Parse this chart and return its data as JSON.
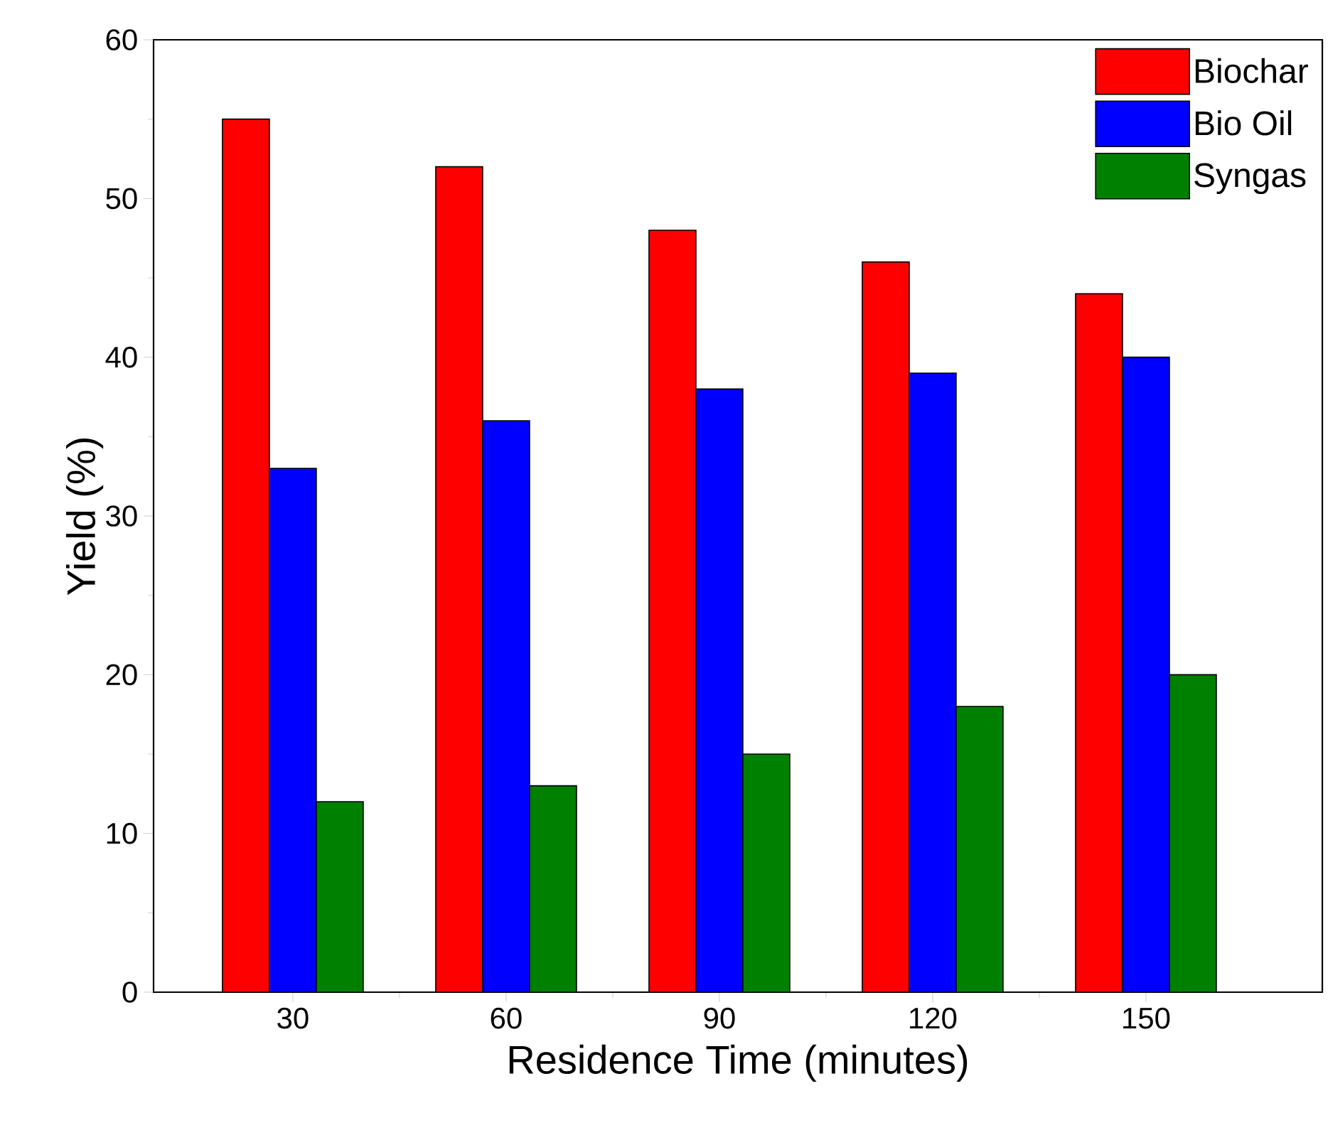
{
  "chart_data": {
    "type": "bar",
    "xlabel": "Residence Time (minutes)",
    "ylabel": "Yield (%)",
    "categories": [
      "30",
      "60",
      "90",
      "120",
      "150"
    ],
    "series": [
      {
        "name": "Biochar",
        "color": "#ff0000",
        "values": [
          55,
          52,
          48,
          46,
          44
        ]
      },
      {
        "name": "Bio Oil",
        "color": "#0000ff",
        "values": [
          33,
          36,
          38,
          39,
          40
        ]
      },
      {
        "name": "Syngas",
        "color": "#008000",
        "values": [
          12,
          13,
          15,
          18,
          20
        ]
      }
    ],
    "ylim": [
      0,
      60
    ],
    "yticks": [
      0,
      10,
      20,
      30,
      40,
      50,
      60
    ],
    "legend": "top right",
    "grid": false
  }
}
